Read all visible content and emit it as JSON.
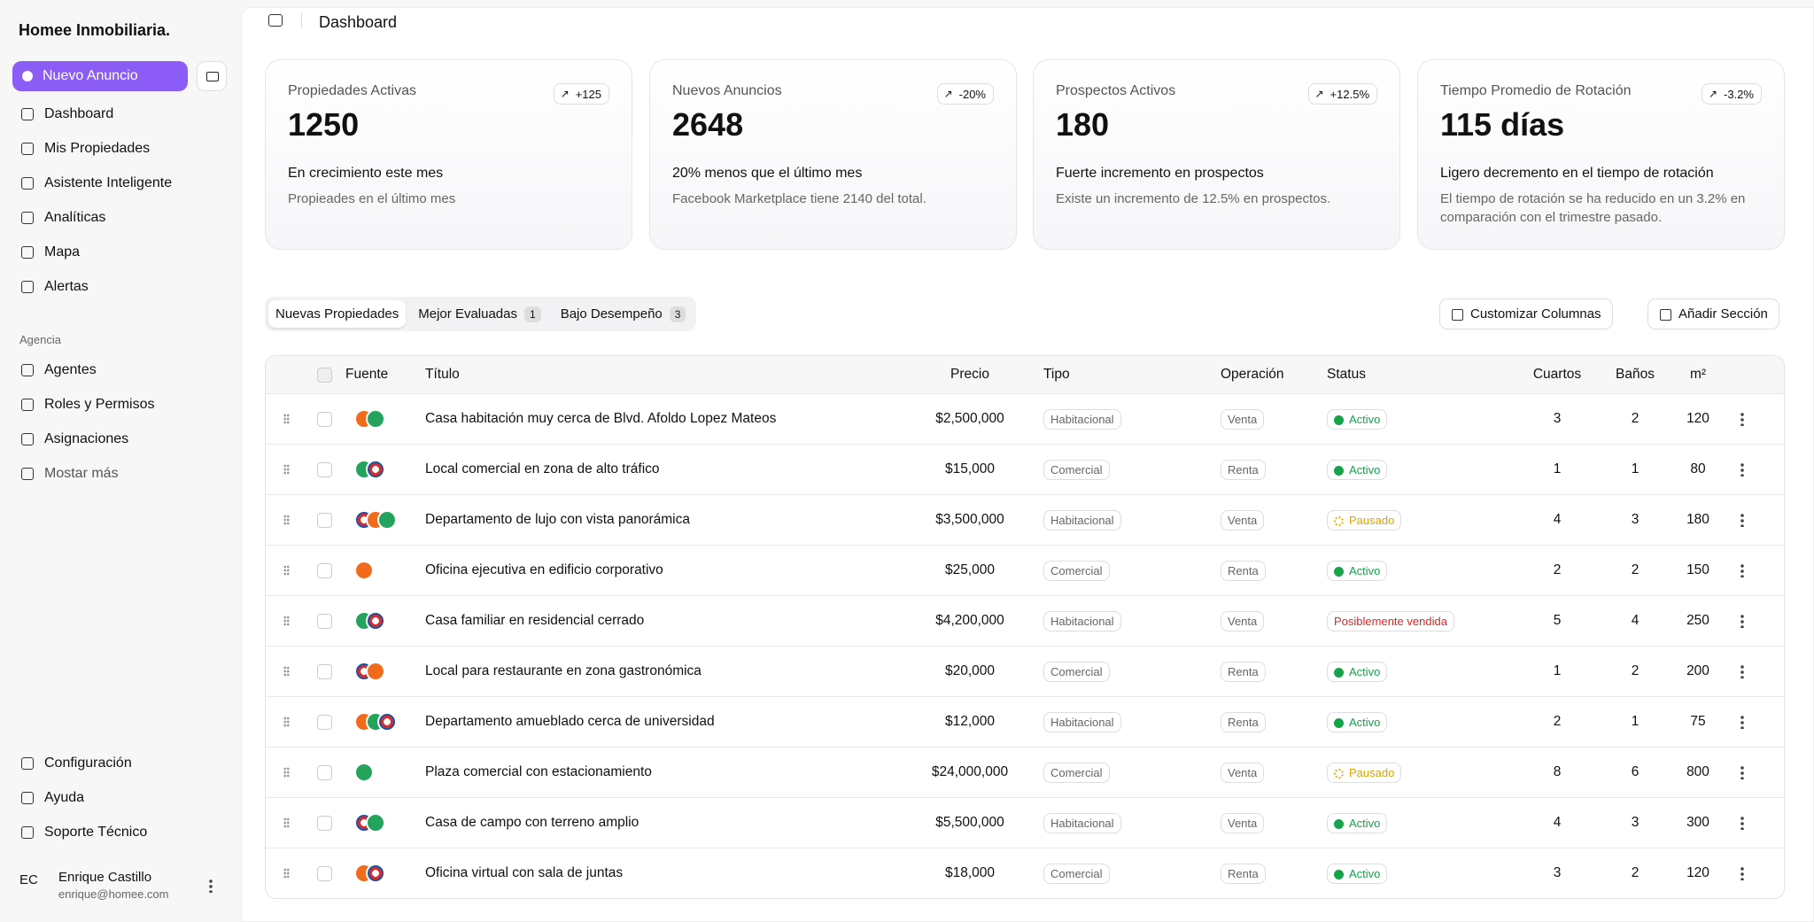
{
  "sidebar": {
    "brand": "Homee Inmobiliaria.",
    "new_button": "Nuevo Anuncio",
    "nav": [
      "Dashboard",
      "Mis Propiedades",
      "Asistente Inteligente",
      "Analíticas",
      "Mapa",
      "Alertas"
    ],
    "section": "Agencia",
    "agency": [
      "Agentes",
      "Roles y Permisos",
      "Asignaciones",
      "Mostar más"
    ],
    "bottom": [
      "Configuración",
      "Ayuda",
      "Soporte Técnico"
    ],
    "user": {
      "initials": "EC",
      "name": "Enrique Castillo",
      "email": "enrique@homee.com"
    }
  },
  "header": {
    "title": "Dashboard"
  },
  "cards": [
    {
      "label": "Propiedades Activas",
      "value": "1250",
      "badge": "+125",
      "headline": "En crecimiento este mes",
      "description": "Propieades en el último mes"
    },
    {
      "label": "Nuevos Anuncios",
      "value": "2648",
      "badge": "-20%",
      "headline": "20% menos que el último mes",
      "description": "Facebook Marketplace tiene 2140 del total."
    },
    {
      "label": "Prospectos Activos",
      "value": "180",
      "badge": "+12.5%",
      "headline": "Fuerte incremento en prospectos",
      "description": "Existe un incremento de 12.5% en prospectos."
    },
    {
      "label": "Tiempo Promedio de Rotación",
      "value": "115 días",
      "badge": "-3.2%",
      "headline": "Ligero decremento en el tiempo de rotación",
      "description": "El tiempo de rotación se ha reducido en un 3.2% en comparación con el trimestre pasado."
    }
  ],
  "tabs": [
    {
      "label": "Nuevas Propiedades"
    },
    {
      "label": "Mejor Evaluadas",
      "count": "1"
    },
    {
      "label": "Bajo Desempeño",
      "count": "3"
    }
  ],
  "actions": [
    "Customizar Columnas",
    "Añadir Sección"
  ],
  "table": {
    "columns": [
      "Fuente",
      "Título",
      "Precio",
      "Tipo",
      "Operación",
      "Status",
      "Cuartos",
      "Baños",
      "m²"
    ],
    "rows": [
      [
        "Casa habitación muy cerca de Blvd. Afoldo Lopez Mateos",
        "$2,500,000",
        "Habitacional",
        "Venta",
        "Activo",
        "3",
        "2",
        "120"
      ],
      [
        "Local comercial en zona de alto tráfico",
        "$15,000",
        "Comercial",
        "Renta",
        "Activo",
        "1",
        "1",
        "80"
      ],
      [
        "Departamento de lujo con vista panorámica",
        "$3,500,000",
        "Habitacional",
        "Venta",
        "Pausado",
        "4",
        "3",
        "180"
      ],
      [
        "Oficina ejecutiva en edificio corporativo",
        "$25,000",
        "Comercial",
        "Renta",
        "Activo",
        "2",
        "2",
        "150"
      ],
      [
        "Casa familiar en residencial cerrado",
        "$4,200,000",
        "Habitacional",
        "Venta",
        "Posiblemente vendida",
        "5",
        "4",
        "250"
      ],
      [
        "Local para restaurante en zona gastronómica",
        "$20,000",
        "Comercial",
        "Renta",
        "Activo",
        "1",
        "2",
        "200"
      ],
      [
        "Departamento amueblado cerca de universidad",
        "$12,000",
        "Habitacional",
        "Renta",
        "Activo",
        "2",
        "1",
        "75"
      ],
      [
        "Plaza comercial con estacionamiento",
        "$24,000,000",
        "Comercial",
        "Venta",
        "Pausado",
        "8",
        "6",
        "800"
      ],
      [
        "Casa de campo con terreno amplio",
        "$5,500,000",
        "Habitacional",
        "Venta",
        "Activo",
        "4",
        "3",
        "300"
      ],
      [
        "Oficina virtual con sala de juntas",
        "$18,000",
        "Comercial",
        "Renta",
        "Activo",
        "3",
        "2",
        "120"
      ]
    ]
  }
}
